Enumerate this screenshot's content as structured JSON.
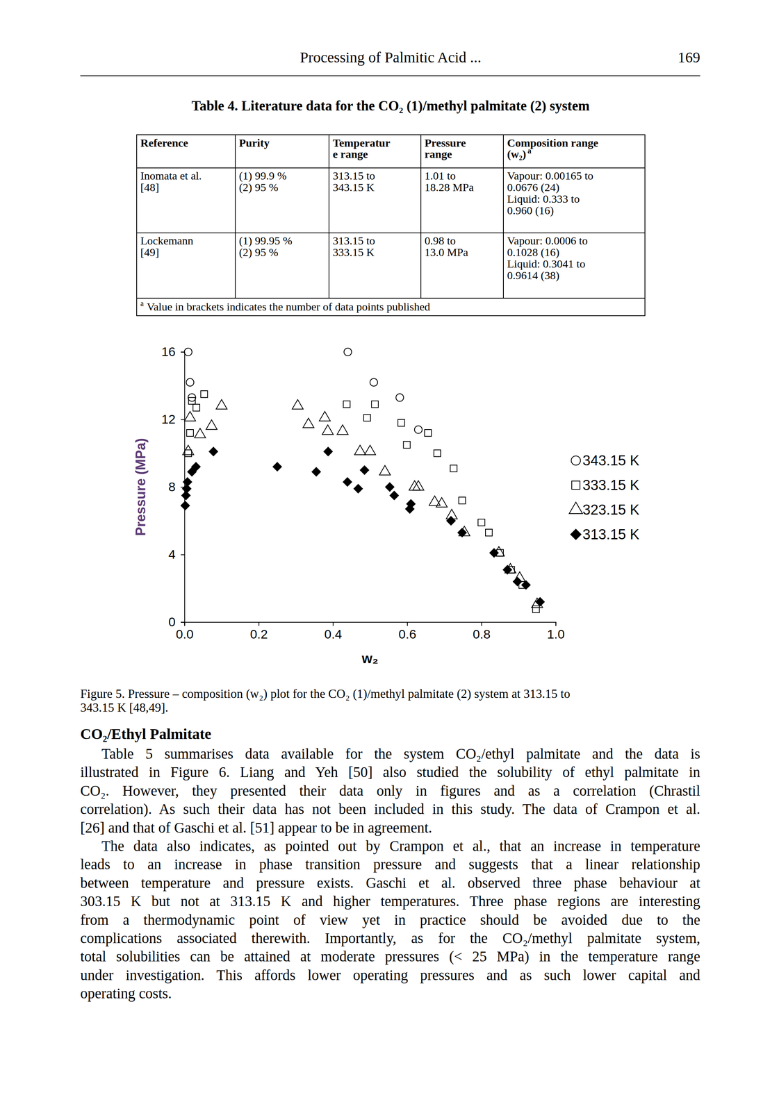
{
  "header": {
    "title": "Processing of Palmitic Acid ...",
    "page": "169"
  },
  "table": {
    "caption": "Table 4. Literature data for the CO₂ (1)/methyl palmitate (2) system",
    "columns": [
      [
        "Reference"
      ],
      [
        "Purity"
      ],
      [
        "Temperatur",
        "e range"
      ],
      [
        "Pressure",
        "range"
      ],
      [
        "Composition range",
        "(w₂)"
      ]
    ],
    "note_mark": "a",
    "rows": [
      [
        [
          "Inomata et al.",
          "[48]"
        ],
        [
          "(1) 99.9 %",
          "(2) 95 %"
        ],
        [
          "313.15 to",
          "343.15 K"
        ],
        [
          "1.01 to",
          "18.28 MPa"
        ],
        [
          "Vapour: 0.00165 to",
          "0.0676 (24)",
          "Liquid: 0.333 to",
          "0.960 (16)"
        ]
      ],
      [
        [
          "Lockemann",
          "[49]"
        ],
        [
          "(1) 99.95 %",
          "(2) 95 %"
        ],
        [
          "313.15 to",
          "333.15 K"
        ],
        [
          "0.98 to",
          "13.0 MPa"
        ],
        [
          "Vapour: 0.0006 to",
          "0.1028 (16)",
          "Liquid: 0.3041 to",
          "0.9614 (38)"
        ]
      ]
    ],
    "footnote": "Value in brackets indicates the number of data points published"
  },
  "chart_data": {
    "type": "scatter",
    "x_label": "w₂",
    "y_label": "Pressure (MPa)",
    "xlim": [
      0,
      1
    ],
    "ylim": [
      0,
      16
    ],
    "xticks": [
      {
        "value": 0,
        "label": "0.0"
      },
      0.2,
      0.4,
      0.6,
      0.8,
      {
        "value": 1,
        "label": "1.0"
      }
    ],
    "yticks": [
      0,
      4,
      8,
      12,
      16
    ],
    "grid": false,
    "legend": "right",
    "series": [
      {
        "name": "343.15 K",
        "marker": "circle-open",
        "color": "#000000",
        "x": [
          0.01,
          0.015,
          0.02,
          0.44,
          0.51,
          0.58,
          0.63
        ],
        "values": [
          16.0,
          14.2,
          13.3,
          16.0,
          14.2,
          13.3,
          11.4
        ]
      },
      {
        "name": "333.15 K",
        "marker": "square-open",
        "color": "#000000",
        "x": [
          0.01,
          0.015,
          0.02,
          0.032,
          0.053,
          0.437,
          0.513,
          0.492,
          0.584,
          0.599,
          0.656,
          0.681,
          0.725,
          0.748,
          0.8,
          0.82,
          0.85,
          0.88,
          0.91,
          0.947
        ],
        "values": [
          10.0,
          11.2,
          13.1,
          12.7,
          13.5,
          12.9,
          12.9,
          12.1,
          11.8,
          10.5,
          11.2,
          10.0,
          9.1,
          7.2,
          5.9,
          5.3,
          4.1,
          3.1,
          2.2,
          0.76
        ]
      },
      {
        "name": "323.15 K",
        "marker": "triangle-open",
        "color": "#000000",
        "x": [
          0.01,
          0.015,
          0.042,
          0.073,
          0.1,
          0.305,
          0.334,
          0.378,
          0.386,
          0.426,
          0.473,
          0.5,
          0.54,
          0.62,
          0.63,
          0.674,
          0.693,
          0.72,
          0.754,
          0.847,
          0.878,
          0.903,
          0.95
        ],
        "values": [
          10.1,
          12.1,
          11.1,
          11.6,
          12.8,
          12.8,
          11.7,
          12.1,
          11.3,
          11.3,
          10.1,
          10.1,
          8.9,
          8.0,
          8.0,
          7.1,
          7.0,
          6.3,
          5.3,
          4.1,
          3.1,
          2.6,
          1.05
        ]
      },
      {
        "name": "313.15 K",
        "marker": "diamond",
        "color": "#000000",
        "x": [
          0.002,
          0.004,
          0.006,
          0.008,
          0.02,
          0.031,
          0.078,
          0.25,
          0.355,
          0.387,
          0.439,
          0.468,
          0.485,
          0.553,
          0.565,
          0.607,
          0.61,
          0.718,
          0.748,
          0.834,
          0.87,
          0.897,
          0.92,
          0.958
        ],
        "values": [
          6.9,
          7.5,
          7.9,
          8.3,
          8.9,
          9.2,
          10.1,
          9.2,
          8.9,
          10.1,
          8.3,
          7.9,
          9.0,
          8.0,
          7.5,
          6.7,
          7.0,
          6.0,
          5.3,
          4.1,
          3.1,
          2.4,
          2.2,
          1.2
        ]
      }
    ]
  },
  "caption": [
    "Figure 5. Pressure – composition (w₂) plot for the CO₂ (1)/methyl palmitate (2) system at 313.15 to",
    "343.15 K [48,49]."
  ],
  "section": {
    "heading": "CO₂/Ethyl Palmitate",
    "paragraphs": [
      [
        "Table 5 summarises data available for the system CO₂/ethyl palmitate and the data is",
        "illustrated in Figure 6. Liang and Yeh [50] also studied the solubility of ethyl palmitate in",
        "CO₂. However, they presented their data only in figures and as a correlation (Chrastil",
        "correlation). As such their data has not been included in this study. The data of Crampon et al.",
        "[26] and that of Gaschi et al. [51] appear to be in agreement."
      ],
      [
        "The data also indicates, as pointed out by Crampon et al., that an increase in temperature",
        "leads to an increase in phase transition pressure and suggests that a linear relationship",
        "between temperature and pressure exists. Gaschi et al. observed three phase behaviour at",
        "303.15 K but not at 313.15 K and higher temperatures. Three phase regions are interesting",
        "from a thermodynamic point of view yet in practice should be avoided due to the",
        "complications associated therewith. Importantly, as for the CO₂/methyl palmitate system,",
        "total solubilities can be attained at moderate pressures (< 25 MPa) in the temperature range",
        "under investigation. This affords lower operating pressures and as such lower capital and",
        "operating costs."
      ]
    ]
  }
}
